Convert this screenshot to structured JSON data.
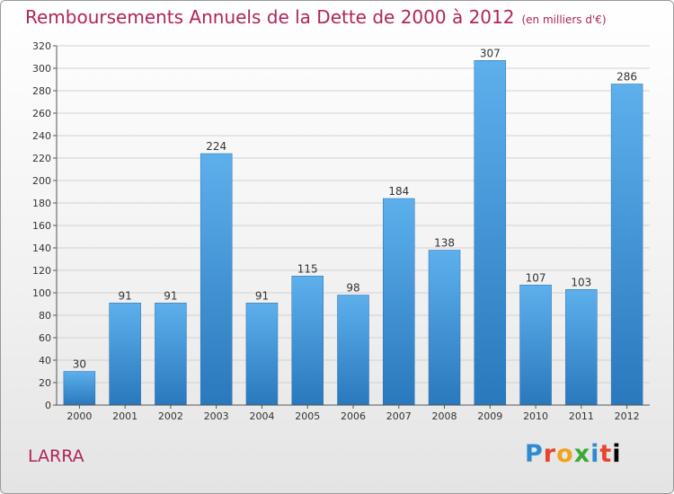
{
  "chart_data": {
    "type": "bar",
    "title": "Remboursements Annuels de la Dette de 2000 à 2012",
    "subtitle": "(en milliers d'€)",
    "categories": [
      "2000",
      "2001",
      "2002",
      "2003",
      "2004",
      "2005",
      "2006",
      "2007",
      "2008",
      "2009",
      "2010",
      "2011",
      "2012"
    ],
    "values": [
      30,
      91,
      91,
      224,
      91,
      115,
      98,
      184,
      138,
      307,
      107,
      103,
      286
    ],
    "xlabel": "",
    "ylabel": "",
    "ylim": [
      0,
      320
    ],
    "yticks": [
      0,
      20,
      40,
      60,
      80,
      100,
      120,
      140,
      160,
      180,
      200,
      220,
      240,
      260,
      280,
      300,
      320
    ],
    "grid": "horizontal",
    "bar_color": "#3f95d8"
  },
  "footer": {
    "commune": "LARRA",
    "brand": "Proxiti"
  }
}
